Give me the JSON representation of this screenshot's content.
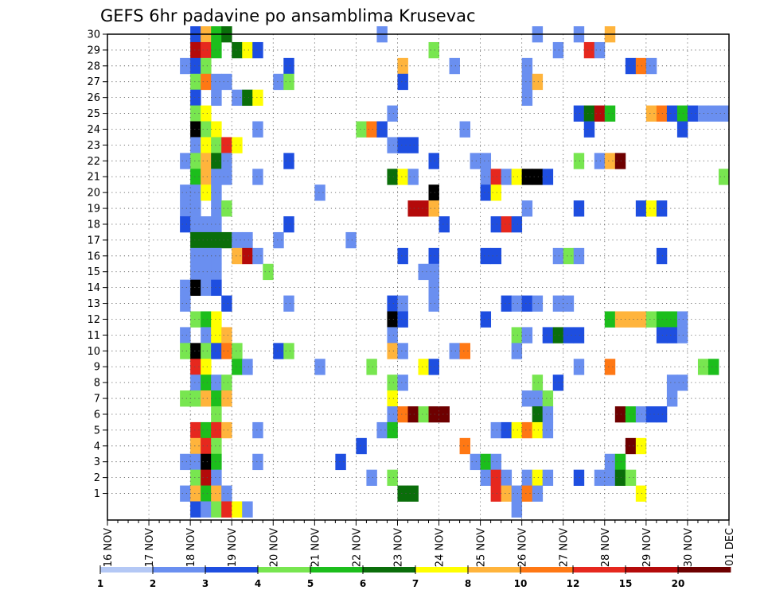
{
  "chart_data": {
    "type": "heatmap",
    "title": "GEFS 6hr padavine po ansamblima Krusevac",
    "x_tick_labels": [
      "16 NOV",
      "17 NOV",
      "18 NOV",
      "19 NOV",
      "20 NOV",
      "21 NOV",
      "22 NOV",
      "23 NOV",
      "24 NOV",
      "25 NOV",
      "26 NOV",
      "27 NOV",
      "28 NOV",
      "29 NOV",
      "30 NOV",
      "01 DEC"
    ],
    "x_range_days": [
      0,
      15
    ],
    "y_tick_labels": [
      "1",
      "2",
      "3",
      "4",
      "5",
      "6",
      "7",
      "8",
      "9",
      "10",
      "11",
      "12",
      "13",
      "14",
      "15",
      "16",
      "17",
      "18",
      "19",
      "20",
      "21",
      "22",
      "23",
      "24",
      "25",
      "26",
      "27",
      "28",
      "29",
      "30"
    ],
    "y_range": [
      0,
      30
    ],
    "grid": true,
    "step_hours": 6,
    "legend": {
      "position": "bottom",
      "colors": [
        "#b4c8f5",
        "#6a8ff0",
        "#1e4ee0",
        "#78e650",
        "#1cbe1c",
        "#0a6e0a",
        "#ffff00",
        "#ffb43c",
        "#ff7814",
        "#e6281e",
        "#b40a0a",
        "#6e0000"
      ],
      "labels": [
        "1",
        "2",
        "3",
        "4",
        "5",
        "6",
        "7",
        "8",
        "10",
        "12",
        "15",
        "20"
      ]
    },
    "cells": [
      [
        30,
        8,
        2
      ],
      [
        30,
        9,
        7
      ],
      [
        30,
        10,
        4
      ],
      [
        30,
        11,
        5
      ],
      [
        30,
        26,
        1
      ],
      [
        30,
        41,
        1
      ],
      [
        30,
        45,
        1
      ],
      [
        30,
        48,
        7
      ],
      [
        29,
        8,
        10
      ],
      [
        29,
        9,
        9
      ],
      [
        29,
        10,
        4
      ],
      [
        29,
        12,
        5
      ],
      [
        29,
        13,
        6
      ],
      [
        29,
        14,
        2
      ],
      [
        29,
        31,
        3
      ],
      [
        29,
        43,
        1
      ],
      [
        29,
        46,
        9
      ],
      [
        29,
        47,
        1
      ],
      [
        28,
        7,
        1
      ],
      [
        28,
        8,
        2
      ],
      [
        28,
        9,
        3
      ],
      [
        28,
        17,
        2
      ],
      [
        28,
        28,
        7
      ],
      [
        28,
        33,
        1
      ],
      [
        28,
        40,
        1
      ],
      [
        28,
        50,
        2
      ],
      [
        28,
        51,
        8
      ],
      [
        28,
        52,
        1
      ],
      [
        27,
        8,
        3
      ],
      [
        27,
        9,
        8
      ],
      [
        27,
        10,
        1
      ],
      [
        27,
        11,
        1
      ],
      [
        27,
        16,
        1
      ],
      [
        27,
        17,
        3
      ],
      [
        27,
        28,
        2
      ],
      [
        27,
        40,
        1
      ],
      [
        27,
        41,
        7
      ],
      [
        26,
        8,
        2
      ],
      [
        26,
        10,
        1
      ],
      [
        26,
        12,
        1
      ],
      [
        26,
        13,
        5
      ],
      [
        26,
        14,
        6
      ],
      [
        26,
        40,
        1
      ],
      [
        25,
        8,
        3
      ],
      [
        25,
        9,
        6
      ],
      [
        25,
        27,
        1
      ],
      [
        25,
        45,
        2
      ],
      [
        25,
        46,
        5
      ],
      [
        25,
        47,
        10
      ],
      [
        25,
        48,
        4
      ],
      [
        25,
        52,
        7
      ],
      [
        25,
        53,
        8
      ],
      [
        25,
        54,
        2
      ],
      [
        25,
        55,
        4
      ],
      [
        25,
        56,
        2
      ],
      [
        25,
        57,
        1
      ],
      [
        25,
        58,
        1
      ],
      [
        25,
        59,
        1
      ],
      [
        24,
        8,
        12
      ],
      [
        24,
        9,
        3
      ],
      [
        24,
        10,
        6
      ],
      [
        24,
        14,
        1
      ],
      [
        24,
        24,
        3
      ],
      [
        24,
        25,
        8
      ],
      [
        24,
        26,
        2
      ],
      [
        24,
        34,
        1
      ],
      [
        24,
        46,
        2
      ],
      [
        24,
        55,
        2
      ],
      [
        23,
        8,
        1
      ],
      [
        23,
        9,
        6
      ],
      [
        23,
        10,
        3
      ],
      [
        23,
        11,
        9
      ],
      [
        23,
        12,
        6
      ],
      [
        23,
        27,
        1
      ],
      [
        23,
        28,
        2
      ],
      [
        23,
        29,
        2
      ],
      [
        22,
        7,
        1
      ],
      [
        22,
        8,
        3
      ],
      [
        22,
        9,
        7
      ],
      [
        22,
        10,
        5
      ],
      [
        22,
        11,
        1
      ],
      [
        22,
        17,
        2
      ],
      [
        22,
        31,
        2
      ],
      [
        22,
        35,
        1
      ],
      [
        22,
        36,
        1
      ],
      [
        22,
        45,
        3
      ],
      [
        22,
        47,
        1
      ],
      [
        22,
        48,
        7
      ],
      [
        22,
        49,
        11
      ],
      [
        21,
        8,
        4
      ],
      [
        21,
        9,
        7
      ],
      [
        21,
        10,
        1
      ],
      [
        21,
        11,
        1
      ],
      [
        21,
        14,
        1
      ],
      [
        21,
        27,
        5
      ],
      [
        21,
        28,
        6
      ],
      [
        21,
        29,
        1
      ],
      [
        21,
        36,
        1
      ],
      [
        21,
        37,
        9
      ],
      [
        21,
        38,
        1
      ],
      [
        21,
        39,
        6
      ],
      [
        21,
        40,
        12
      ],
      [
        21,
        41,
        20
      ],
      [
        21,
        42,
        2
      ],
      [
        21,
        59,
        3
      ],
      [
        20,
        7,
        1
      ],
      [
        20,
        8,
        1
      ],
      [
        20,
        9,
        6
      ],
      [
        20,
        10,
        1
      ],
      [
        20,
        20,
        1
      ],
      [
        20,
        31,
        12
      ],
      [
        20,
        36,
        2
      ],
      [
        20,
        37,
        6
      ],
      [
        19,
        7,
        1
      ],
      [
        19,
        8,
        1
      ],
      [
        19,
        10,
        1
      ],
      [
        19,
        11,
        3
      ],
      [
        19,
        29,
        10
      ],
      [
        19,
        30,
        10
      ],
      [
        19,
        31,
        7
      ],
      [
        19,
        40,
        1
      ],
      [
        19,
        45,
        2
      ],
      [
        19,
        51,
        2
      ],
      [
        19,
        52,
        6
      ],
      [
        19,
        53,
        2
      ],
      [
        18,
        7,
        2
      ],
      [
        18,
        8,
        1
      ],
      [
        18,
        9,
        1
      ],
      [
        18,
        10,
        1
      ],
      [
        18,
        17,
        2
      ],
      [
        18,
        32,
        2
      ],
      [
        18,
        37,
        2
      ],
      [
        18,
        38,
        9
      ],
      [
        18,
        39,
        2
      ],
      [
        17,
        8,
        5
      ],
      [
        17,
        9,
        5
      ],
      [
        17,
        10,
        5
      ],
      [
        17,
        11,
        5
      ],
      [
        17,
        12,
        1
      ],
      [
        17,
        13,
        1
      ],
      [
        17,
        16,
        1
      ],
      [
        17,
        23,
        1
      ],
      [
        16,
        8,
        1
      ],
      [
        16,
        9,
        1
      ],
      [
        16,
        10,
        1
      ],
      [
        16,
        12,
        7
      ],
      [
        16,
        13,
        10
      ],
      [
        16,
        14,
        1
      ],
      [
        16,
        28,
        2
      ],
      [
        16,
        31,
        2
      ],
      [
        16,
        36,
        2
      ],
      [
        16,
        37,
        2
      ],
      [
        16,
        43,
        1
      ],
      [
        16,
        44,
        3
      ],
      [
        16,
        45,
        1
      ],
      [
        16,
        53,
        2
      ],
      [
        15,
        8,
        1
      ],
      [
        15,
        9,
        1
      ],
      [
        15,
        10,
        1
      ],
      [
        15,
        15,
        3
      ],
      [
        15,
        30,
        1
      ],
      [
        15,
        31,
        1
      ],
      [
        14,
        7,
        1
      ],
      [
        14,
        8,
        15
      ],
      [
        14,
        9,
        1
      ],
      [
        14,
        10,
        2
      ],
      [
        14,
        31,
        1
      ],
      [
        13,
        7,
        1
      ],
      [
        13,
        11,
        2
      ],
      [
        13,
        17,
        1
      ],
      [
        13,
        27,
        2
      ],
      [
        13,
        28,
        1
      ],
      [
        13,
        31,
        1
      ],
      [
        13,
        38,
        2
      ],
      [
        13,
        39,
        1
      ],
      [
        13,
        40,
        2
      ],
      [
        13,
        41,
        1
      ],
      [
        13,
        43,
        1
      ],
      [
        13,
        44,
        1
      ],
      [
        12,
        8,
        3
      ],
      [
        12,
        9,
        4
      ],
      [
        12,
        10,
        6
      ],
      [
        12,
        27,
        15
      ],
      [
        12,
        28,
        2
      ],
      [
        12,
        36,
        2
      ],
      [
        12,
        48,
        4
      ],
      [
        12,
        49,
        7
      ],
      [
        12,
        50,
        7
      ],
      [
        12,
        51,
        7
      ],
      [
        12,
        52,
        3
      ],
      [
        12,
        53,
        4
      ],
      [
        12,
        54,
        4
      ],
      [
        12,
        55,
        1
      ],
      [
        11,
        7,
        1
      ],
      [
        11,
        9,
        1
      ],
      [
        11,
        10,
        6
      ],
      [
        11,
        11,
        7
      ],
      [
        11,
        27,
        1
      ],
      [
        11,
        39,
        3
      ],
      [
        11,
        40,
        1
      ],
      [
        11,
        42,
        2
      ],
      [
        11,
        43,
        5
      ],
      [
        11,
        44,
        2
      ],
      [
        11,
        45,
        2
      ],
      [
        11,
        53,
        2
      ],
      [
        11,
        54,
        2
      ],
      [
        11,
        55,
        1
      ],
      [
        10,
        7,
        3
      ],
      [
        10,
        8,
        15
      ],
      [
        10,
        9,
        3
      ],
      [
        10,
        10,
        2
      ],
      [
        10,
        11,
        8
      ],
      [
        10,
        12,
        3
      ],
      [
        10,
        16,
        2
      ],
      [
        10,
        17,
        3
      ],
      [
        10,
        27,
        7
      ],
      [
        10,
        28,
        1
      ],
      [
        10,
        33,
        1
      ],
      [
        10,
        34,
        8
      ],
      [
        10,
        39,
        1
      ],
      [
        9,
        8,
        9
      ],
      [
        9,
        9,
        6
      ],
      [
        9,
        12,
        4
      ],
      [
        9,
        13,
        1
      ],
      [
        9,
        20,
        1
      ],
      [
        9,
        25,
        3
      ],
      [
        9,
        30,
        6
      ],
      [
        9,
        31,
        2
      ],
      [
        9,
        45,
        1
      ],
      [
        9,
        48,
        8
      ],
      [
        9,
        57,
        3
      ],
      [
        9,
        58,
        4
      ],
      [
        8,
        8,
        1
      ],
      [
        8,
        9,
        4
      ],
      [
        8,
        10,
        1
      ],
      [
        8,
        11,
        3
      ],
      [
        8,
        27,
        3
      ],
      [
        8,
        28,
        1
      ],
      [
        8,
        41,
        3
      ],
      [
        8,
        43,
        2
      ],
      [
        8,
        54,
        1
      ],
      [
        8,
        55,
        1
      ],
      [
        7,
        7,
        3
      ],
      [
        7,
        8,
        3
      ],
      [
        7,
        9,
        7
      ],
      [
        7,
        10,
        4
      ],
      [
        7,
        11,
        7
      ],
      [
        7,
        27,
        6
      ],
      [
        7,
        40,
        1
      ],
      [
        7,
        41,
        1
      ],
      [
        7,
        42,
        3
      ],
      [
        7,
        54,
        1
      ],
      [
        6,
        10,
        3
      ],
      [
        6,
        27,
        1
      ],
      [
        6,
        28,
        8
      ],
      [
        6,
        29,
        11
      ],
      [
        6,
        30,
        3
      ],
      [
        6,
        31,
        11
      ],
      [
        6,
        32,
        11
      ],
      [
        6,
        41,
        5
      ],
      [
        6,
        42,
        1
      ],
      [
        6,
        49,
        11
      ],
      [
        6,
        50,
        4
      ],
      [
        6,
        51,
        1
      ],
      [
        6,
        52,
        2
      ],
      [
        6,
        53,
        2
      ],
      [
        5,
        8,
        9
      ],
      [
        5,
        9,
        4
      ],
      [
        5,
        10,
        9
      ],
      [
        5,
        11,
        7
      ],
      [
        5,
        14,
        1
      ],
      [
        5,
        26,
        1
      ],
      [
        5,
        27,
        4
      ],
      [
        5,
        37,
        1
      ],
      [
        5,
        38,
        2
      ],
      [
        5,
        39,
        6
      ],
      [
        5,
        40,
        8
      ],
      [
        5,
        41,
        6
      ],
      [
        5,
        42,
        1
      ],
      [
        4,
        8,
        7
      ],
      [
        4,
        9,
        9
      ],
      [
        4,
        10,
        3
      ],
      [
        4,
        24,
        2
      ],
      [
        4,
        34,
        8
      ],
      [
        4,
        50,
        11
      ],
      [
        4,
        51,
        6
      ],
      [
        3,
        7,
        1
      ],
      [
        3,
        8,
        1
      ],
      [
        3,
        9,
        12
      ],
      [
        3,
        10,
        4
      ],
      [
        3,
        14,
        1
      ],
      [
        3,
        22,
        2
      ],
      [
        3,
        35,
        1
      ],
      [
        3,
        36,
        4
      ],
      [
        3,
        37,
        1
      ],
      [
        3,
        48,
        1
      ],
      [
        3,
        49,
        4
      ],
      [
        2,
        8,
        3
      ],
      [
        2,
        9,
        10
      ],
      [
        2,
        10,
        1
      ],
      [
        2,
        25,
        1
      ],
      [
        2,
        27,
        3
      ],
      [
        2,
        36,
        1
      ],
      [
        2,
        37,
        9
      ],
      [
        2,
        38,
        1
      ],
      [
        2,
        40,
        1
      ],
      [
        2,
        41,
        6
      ],
      [
        2,
        42,
        1
      ],
      [
        2,
        45,
        2
      ],
      [
        2,
        47,
        1
      ],
      [
        2,
        48,
        1
      ],
      [
        2,
        49,
        5
      ],
      [
        2,
        50,
        3
      ],
      [
        1,
        7,
        1
      ],
      [
        1,
        8,
        7
      ],
      [
        1,
        9,
        4
      ],
      [
        1,
        10,
        7
      ],
      [
        1,
        11,
        1
      ],
      [
        1,
        28,
        5
      ],
      [
        1,
        29,
        5
      ],
      [
        1,
        37,
        9
      ],
      [
        1,
        38,
        7
      ],
      [
        1,
        39,
        1
      ],
      [
        1,
        40,
        8
      ],
      [
        1,
        41,
        1
      ],
      [
        1,
        51,
        6
      ],
      [
        0,
        8,
        2
      ],
      [
        0,
        9,
        1
      ],
      [
        0,
        10,
        3
      ],
      [
        0,
        11,
        9
      ],
      [
        0,
        12,
        6
      ],
      [
        0,
        13,
        1
      ],
      [
        0,
        39,
        1
      ]
    ]
  }
}
